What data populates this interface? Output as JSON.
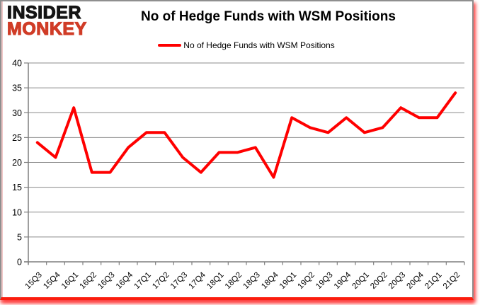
{
  "logo": {
    "line1": "INSIDER",
    "line2": "MONKEY",
    "line1_color": "#141414",
    "line2_color": "#d03c27"
  },
  "header": {
    "title": "No of Hedge Funds with WSM Positions"
  },
  "legend": {
    "label": "No of Hedge Funds with WSM Positions",
    "line_color": "#FF0000"
  },
  "chart_data": {
    "type": "line",
    "title": "No of Hedge Funds with WSM Positions",
    "categories": [
      "15Q3",
      "15Q4",
      "16Q1",
      "16Q2",
      "16Q3",
      "16Q4",
      "17Q1",
      "17Q2",
      "17Q3",
      "17Q4",
      "18Q1",
      "18Q2",
      "18Q3",
      "18Q4",
      "19Q1",
      "19Q2",
      "19Q3",
      "19Q4",
      "20Q1",
      "20Q2",
      "20Q3",
      "20Q4",
      "21Q1",
      "21Q2"
    ],
    "series": [
      {
        "name": "No of Hedge Funds with WSM Positions",
        "values": [
          24,
          21,
          31,
          18,
          18,
          23,
          26,
          26,
          21,
          18,
          22,
          22,
          23,
          17,
          29,
          27,
          26,
          29,
          26,
          27,
          31,
          29,
          29,
          34
        ],
        "color": "#FF0000"
      }
    ],
    "yticks": [
      0,
      5,
      10,
      15,
      20,
      25,
      30,
      35,
      40
    ],
    "ylim": [
      0,
      40
    ],
    "xlabel": "",
    "ylabel": "",
    "grid": true,
    "legend_position": "top"
  },
  "colors": {
    "grid": "#8c8c8c",
    "axis": "#7f7f7f",
    "tick_label": "#000000",
    "background": "#ffffff",
    "border_red": "#fb1d0e"
  }
}
